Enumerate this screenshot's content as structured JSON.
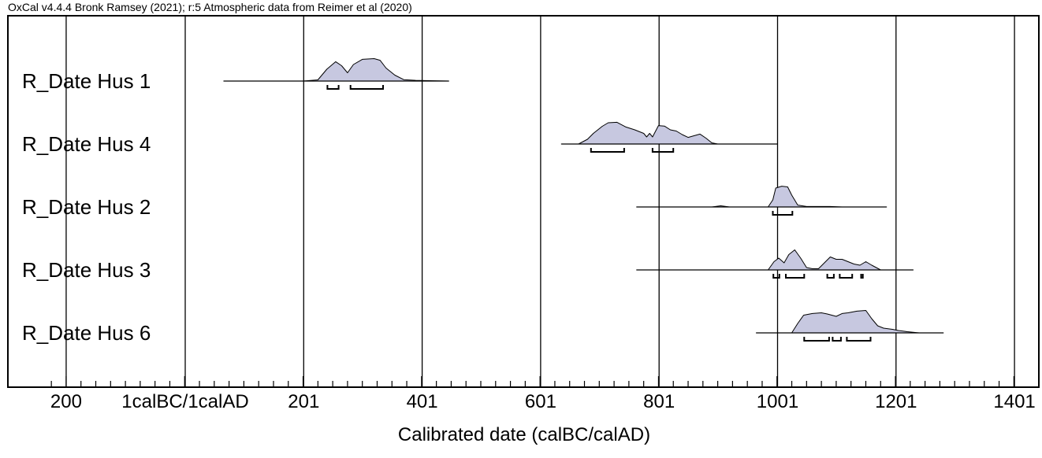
{
  "chart_data": {
    "type": "area",
    "title": "OxCal v4.4.4 Bronk Ramsey (2021); r:5 Atmospheric data from Reimer et al (2020)",
    "xlabel": "Calibrated date (calBC/calAD)",
    "ylabel": "",
    "xlim": [
      -250,
      1401
    ],
    "x_ticks": [
      {
        "value": -200,
        "label": "200"
      },
      {
        "value": 1,
        "label": "1calBC/1calAD"
      },
      {
        "value": 201,
        "label": "201"
      },
      {
        "value": 401,
        "label": "401"
      },
      {
        "value": 601,
        "label": "601"
      },
      {
        "value": 801,
        "label": "801"
      },
      {
        "value": 1001,
        "label": "1001"
      },
      {
        "value": 1201,
        "label": "1201"
      },
      {
        "value": 1401,
        "label": "1401"
      }
    ],
    "grid": true,
    "fill_color": "#c7c8e0",
    "series": [
      {
        "name": "R_Date Hus 1",
        "range": [
          66,
          446
        ],
        "density": [
          [
            66,
            0
          ],
          [
            200,
            0
          ],
          [
            225,
            0.05
          ],
          [
            240,
            0.5
          ],
          [
            255,
            0.82
          ],
          [
            265,
            0.65
          ],
          [
            275,
            0.35
          ],
          [
            285,
            0.7
          ],
          [
            300,
            0.92
          ],
          [
            320,
            0.95
          ],
          [
            330,
            0.88
          ],
          [
            340,
            0.55
          ],
          [
            355,
            0.25
          ],
          [
            370,
            0.06
          ],
          [
            390,
            0.03
          ],
          [
            405,
            0.02
          ],
          [
            446,
            0
          ]
        ],
        "hpd": [
          [
            241,
            260
          ],
          [
            280,
            335
          ]
        ]
      },
      {
        "name": "R_Date Hus 4",
        "range": [
          636,
          1001
        ],
        "density": [
          [
            636,
            0
          ],
          [
            665,
            0
          ],
          [
            680,
            0.2
          ],
          [
            690,
            0.45
          ],
          [
            705,
            0.75
          ],
          [
            715,
            0.9
          ],
          [
            730,
            0.92
          ],
          [
            745,
            0.72
          ],
          [
            760,
            0.6
          ],
          [
            775,
            0.45
          ],
          [
            780,
            0.3
          ],
          [
            785,
            0.45
          ],
          [
            790,
            0.3
          ],
          [
            800,
            0.78
          ],
          [
            810,
            0.76
          ],
          [
            820,
            0.6
          ],
          [
            830,
            0.55
          ],
          [
            840,
            0.4
          ],
          [
            850,
            0.28
          ],
          [
            860,
            0.35
          ],
          [
            870,
            0.42
          ],
          [
            880,
            0.25
          ],
          [
            890,
            0.05
          ],
          [
            900,
            0
          ],
          [
            1001,
            0
          ]
        ],
        "hpd": [
          [
            686,
            742
          ],
          [
            790,
            825
          ]
        ]
      },
      {
        "name": "R_Date Hus 2",
        "range": [
          763,
          1185
        ],
        "density": [
          [
            763,
            0
          ],
          [
            890,
            0
          ],
          [
            905,
            0.05
          ],
          [
            920,
            0
          ],
          [
            985,
            0
          ],
          [
            993,
            0.3
          ],
          [
            998,
            0.8
          ],
          [
            1008,
            0.88
          ],
          [
            1018,
            0.85
          ],
          [
            1025,
            0.5
          ],
          [
            1035,
            0.08
          ],
          [
            1050,
            0.02
          ],
          [
            1090,
            0.02
          ],
          [
            1110,
            0
          ],
          [
            1185,
            0
          ]
        ],
        "hpd": [
          [
            993,
            1026
          ]
        ]
      },
      {
        "name": "R_Date Hus 3",
        "range": [
          763,
          1230
        ],
        "density": [
          [
            763,
            0
          ],
          [
            985,
            0
          ],
          [
            995,
            0.35
          ],
          [
            1003,
            0.5
          ],
          [
            1012,
            0.3
          ],
          [
            1020,
            0.65
          ],
          [
            1030,
            0.85
          ],
          [
            1040,
            0.5
          ],
          [
            1050,
            0.1
          ],
          [
            1060,
            0.05
          ],
          [
            1070,
            0.05
          ],
          [
            1080,
            0.3
          ],
          [
            1090,
            0.55
          ],
          [
            1100,
            0.45
          ],
          [
            1110,
            0.45
          ],
          [
            1120,
            0.35
          ],
          [
            1130,
            0.25
          ],
          [
            1140,
            0.2
          ],
          [
            1150,
            0.35
          ],
          [
            1160,
            0.2
          ],
          [
            1175,
            0
          ],
          [
            1230,
            0
          ]
        ],
        "hpd": [
          [
            994,
            1004
          ],
          [
            1015,
            1046
          ],
          [
            1085,
            1096
          ],
          [
            1106,
            1127
          ],
          [
            1142,
            1145
          ]
        ]
      },
      {
        "name": "R_Date Hus 6",
        "range": [
          965,
          1281
        ],
        "density": [
          [
            965,
            0
          ],
          [
            1025,
            0
          ],
          [
            1035,
            0.4
          ],
          [
            1045,
            0.75
          ],
          [
            1060,
            0.82
          ],
          [
            1075,
            0.85
          ],
          [
            1085,
            0.8
          ],
          [
            1100,
            0.7
          ],
          [
            1110,
            0.82
          ],
          [
            1120,
            0.85
          ],
          [
            1135,
            0.92
          ],
          [
            1150,
            0.95
          ],
          [
            1160,
            0.6
          ],
          [
            1170,
            0.3
          ],
          [
            1180,
            0.2
          ],
          [
            1195,
            0.15
          ],
          [
            1205,
            0.1
          ],
          [
            1220,
            0.05
          ],
          [
            1240,
            0
          ],
          [
            1281,
            0
          ]
        ],
        "hpd": [
          [
            1046,
            1088
          ],
          [
            1094,
            1108
          ],
          [
            1118,
            1158
          ]
        ]
      }
    ]
  }
}
